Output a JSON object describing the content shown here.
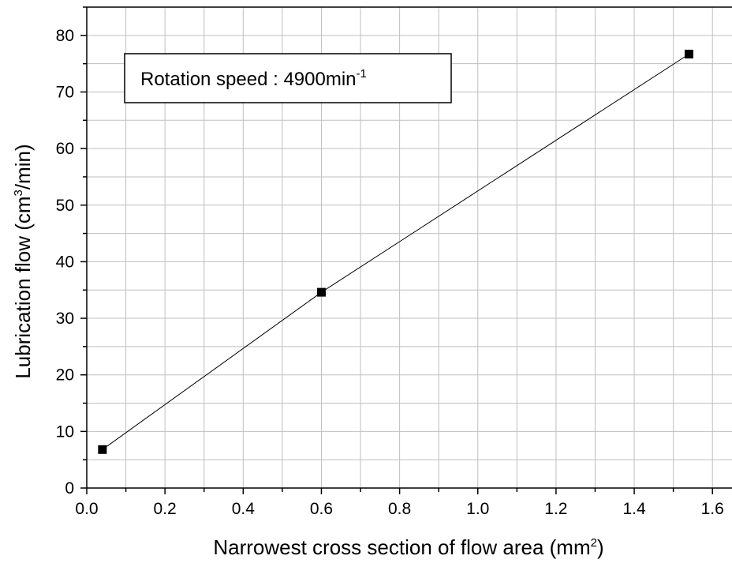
{
  "chart_data": {
    "type": "line",
    "xlabel": {
      "prefix": "Narrowest cross section of flow area (mm",
      "sup": "2",
      "suffix": ")"
    },
    "ylabel": {
      "prefix": "Lubrication flow (cm",
      "sup": "3",
      "suffix": "/min)"
    },
    "annotation": {
      "text": "Rotation speed : 4900min",
      "sup": "-1"
    },
    "xlim": [
      0.0,
      1.65
    ],
    "ylim": [
      0,
      85
    ],
    "x_ticks": [
      "0.0",
      "0.2",
      "0.4",
      "0.6",
      "0.8",
      "1.0",
      "1.2",
      "1.4",
      "1.6"
    ],
    "y_ticks": [
      "0",
      "10",
      "20",
      "30",
      "40",
      "50",
      "60",
      "70",
      "80"
    ],
    "grid": true,
    "series": [
      {
        "marker": "square",
        "color": "#000000",
        "x": [
          0.04,
          0.6,
          1.54
        ],
        "y": [
          6.8,
          34.6,
          76.7
        ]
      }
    ]
  }
}
